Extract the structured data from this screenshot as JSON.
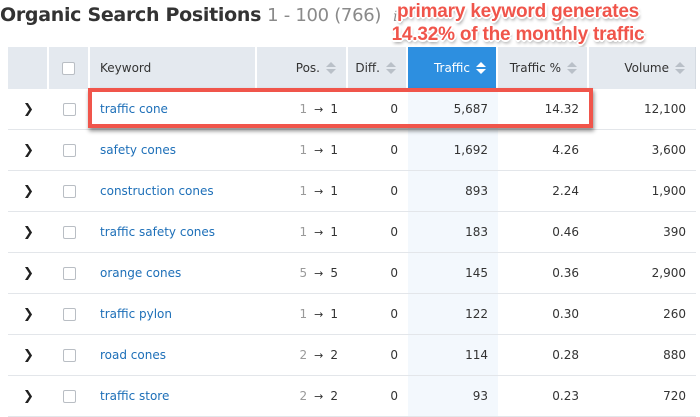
{
  "header": {
    "title": "Organic Search Positions",
    "range": "1 - 100 (766)",
    "info_icon": "i"
  },
  "annotation": {
    "line1": "primary keyword generates",
    "line2": "14.32% of the monthly traffic",
    "color": "#f0554b"
  },
  "table": {
    "columns": [
      {
        "key": "keyword",
        "label": "Keyword",
        "sortable": false
      },
      {
        "key": "pos",
        "label": "Pos.",
        "sortable": true
      },
      {
        "key": "diff",
        "label": "Diff.",
        "sortable": true
      },
      {
        "key": "traffic",
        "label": "Traffic",
        "sortable": true,
        "active": true
      },
      {
        "key": "traffic_pct",
        "label": "Traffic %",
        "sortable": true
      },
      {
        "key": "volume",
        "label": "Volume",
        "sortable": true
      }
    ],
    "rows": [
      {
        "keyword": "traffic cone",
        "pos_from": "1",
        "pos_to": "1",
        "diff": "0",
        "traffic": "5,687",
        "traffic_pct": "14.32",
        "volume": "12,100",
        "highlighted": true
      },
      {
        "keyword": "safety cones",
        "pos_from": "1",
        "pos_to": "1",
        "diff": "0",
        "traffic": "1,692",
        "traffic_pct": "4.26",
        "volume": "3,600"
      },
      {
        "keyword": "construction cones",
        "pos_from": "1",
        "pos_to": "1",
        "diff": "0",
        "traffic": "893",
        "traffic_pct": "2.24",
        "volume": "1,900"
      },
      {
        "keyword": "traffic safety cones",
        "pos_from": "1",
        "pos_to": "1",
        "diff": "0",
        "traffic": "183",
        "traffic_pct": "0.46",
        "volume": "390"
      },
      {
        "keyword": "orange cones",
        "pos_from": "5",
        "pos_to": "5",
        "diff": "0",
        "traffic": "145",
        "traffic_pct": "0.36",
        "volume": "2,900"
      },
      {
        "keyword": "traffic pylon",
        "pos_from": "1",
        "pos_to": "1",
        "diff": "0",
        "traffic": "122",
        "traffic_pct": "0.30",
        "volume": "260"
      },
      {
        "keyword": "road cones",
        "pos_from": "2",
        "pos_to": "2",
        "diff": "0",
        "traffic": "114",
        "traffic_pct": "0.28",
        "volume": "880"
      },
      {
        "keyword": "traffic store",
        "pos_from": "2",
        "pos_to": "2",
        "diff": "0",
        "traffic": "93",
        "traffic_pct": "0.23",
        "volume": "720"
      }
    ]
  },
  "icons": {
    "expand": "chevron-right-icon",
    "arrow": "→",
    "sort": "sort-icon"
  },
  "colors": {
    "header_bg": "#e4e9ef",
    "active_column": "#2d8fe0",
    "link": "#1d6fb8",
    "highlight": "#f0554b"
  }
}
